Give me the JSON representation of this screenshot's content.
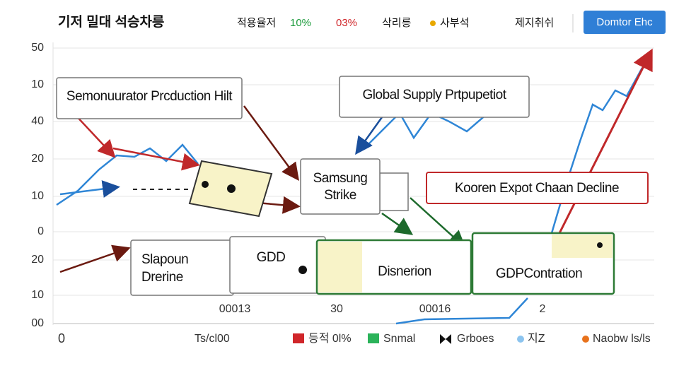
{
  "header": {
    "title": "기저 밀대 석승차릉",
    "stats": [
      "적용율저",
      "10%",
      "03%",
      "삭리릉",
      "사부석"
    ],
    "right_label": "제지취쉬",
    "button": "Domtor Ehc"
  },
  "y_labels": [
    "50",
    "10",
    "40",
    "20",
    "10",
    "0",
    "20",
    "10",
    "00"
  ],
  "x_labels": [
    "0",
    "Ts/cl00"
  ],
  "bottom_labels": [
    "00013",
    "30",
    "00016",
    "2"
  ],
  "legend": [
    "등적 0l%",
    "Snmal",
    "Grboes",
    "지Z",
    "Naobw ls/ls"
  ],
  "nodes": [
    {
      "label": "Semonuurator Prcduction Hilt"
    },
    {
      "label": "Global Supply Prtpupetiot"
    },
    {
      "label": [
        "Samsung",
        "Strike"
      ]
    },
    {
      "label": "Kooren Expot Chaan Decline"
    },
    {
      "label": [
        "Slapoun",
        "Drerine"
      ]
    },
    {
      "label": "GDD"
    },
    {
      "label": "Disnerion"
    },
    {
      "label": "GDPContration"
    }
  ]
}
